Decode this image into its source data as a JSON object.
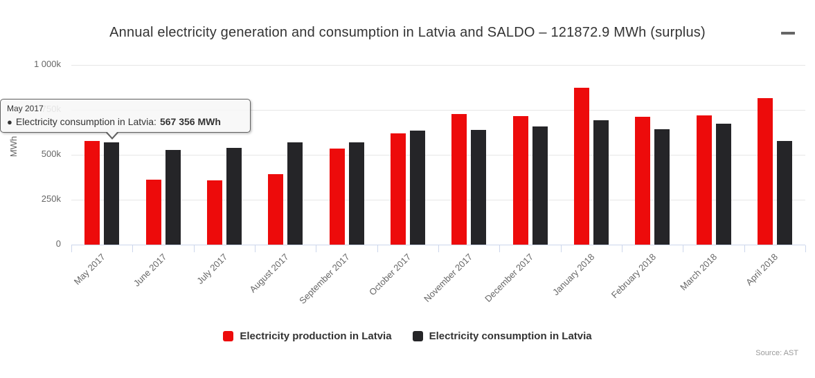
{
  "title": "Annual electricity generation and consumption in Latvia and SALDO – 121872.9 MWh (surplus)",
  "export_menu": {
    "icon": "hamburger-menu-icon"
  },
  "y_axis": {
    "title": "MWh",
    "ticks": [
      {
        "label": "0",
        "value": 0
      },
      {
        "label": "250k",
        "value": 250000
      },
      {
        "label": "500k",
        "value": 500000
      },
      {
        "label": "750k",
        "value": 750000
      },
      {
        "label": "1 000k",
        "value": 1000000
      }
    ]
  },
  "tooltip": {
    "header": "May 2017",
    "bullet": "●",
    "series_label": "Electricity consumption in Latvia:",
    "value": "567 356 MWh"
  },
  "legend": {
    "items": [
      {
        "label": "Electricity production in Latvia",
        "color": "#ed0b0b"
      },
      {
        "label": "Electricity consumption in Latvia",
        "color": "#252528"
      }
    ]
  },
  "source": "Source: AST",
  "colors": {
    "production": "#ed0b0b",
    "consumption": "#252528",
    "gridline": "#e6e6e6",
    "axis": "#ccd6eb",
    "label": "#666666",
    "title": "#333333"
  },
  "chart_data": {
    "type": "bar",
    "title": "Annual electricity generation and consumption in Latvia and SALDO – 121872.9 MWh (surplus)",
    "categories": [
      "May 2017",
      "June 2017",
      "July 2017",
      "August 2017",
      "September 2017",
      "October 2017",
      "November 2017",
      "December 2017",
      "January 2018",
      "February 2018",
      "March 2018",
      "April 2018"
    ],
    "series": [
      {
        "name": "Electricity production in Latvia",
        "color": "#ed0b0b",
        "values": [
          578000,
          362000,
          358000,
          392000,
          533000,
          618000,
          726000,
          717000,
          872000,
          712000,
          720000,
          816000
        ]
      },
      {
        "name": "Electricity consumption in Latvia",
        "color": "#252528",
        "values": [
          567356,
          527000,
          537000,
          568000,
          571000,
          635000,
          640000,
          659000,
          692000,
          643000,
          673000,
          576000
        ]
      }
    ],
    "xlabel": "",
    "ylabel": "MWh",
    "ylim": [
      0,
      1000000
    ],
    "grid": true,
    "legend_position": "bottom",
    "annotations": {
      "tooltip_point": {
        "category": "May 2017",
        "series": "Electricity consumption in Latvia",
        "value": 567356
      }
    },
    "source": "Source: AST"
  }
}
